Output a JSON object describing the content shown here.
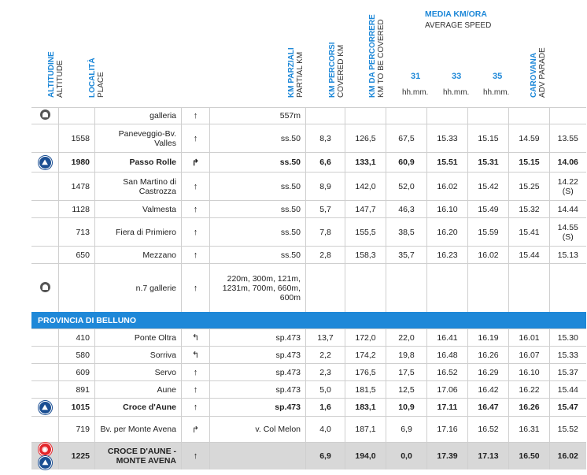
{
  "header": {
    "altitude": {
      "it": "ALTITUDINE",
      "en": "ALTITUDE"
    },
    "place": {
      "it": "LOCALITÀ",
      "en": "PLACE"
    },
    "partial_km": {
      "it": "KM PARZIALI",
      "en": "PARTIAL KM"
    },
    "covered_km": {
      "it": "KM PERCORSI",
      "en": "COVERED KM"
    },
    "to_cover_km": {
      "it": "KM DA PERCORRERE",
      "en": "KM TO BE COVERED"
    },
    "speed_title": "MEDIA KM/ORA",
    "speed_sub": "AVERAGE SPEED",
    "speeds": [
      "31",
      "33",
      "35"
    ],
    "time_unit": "hh.mm.",
    "caravan": {
      "it": "CAROVANA",
      "en": "ADV PARADE"
    }
  },
  "icons": {
    "tunnel": "tunnel-icon",
    "gpm": "gpm-badge-icon",
    "feed": "feed-zone-icon",
    "straight": "↑",
    "right": "↱",
    "left": "↰"
  },
  "colors": {
    "accent": "#1e88d8",
    "badge": "#1b4f93",
    "final_row": "#d8d8d8",
    "red": "#e3262c"
  },
  "rows": [
    {
      "icon": "tunnel",
      "alt": "",
      "place": "galleria",
      "dir": "↑",
      "road": "557m",
      "partial": "",
      "covered": "",
      "remaining": "",
      "s31": "",
      "s33": "",
      "s35": "",
      "caravan": "",
      "bold": false
    },
    {
      "icon": "",
      "alt": "1558",
      "place": "Paneveggio-Bv. Valles",
      "dir": "↑",
      "road": "ss.50",
      "partial": "8,3",
      "covered": "126,5",
      "remaining": "67,5",
      "s31": "15.33",
      "s33": "15.15",
      "s35": "14.59",
      "caravan": "13.55",
      "bold": false
    },
    {
      "icon": "gpm",
      "alt": "1980",
      "place": "Passo Rolle",
      "dir": "↱",
      "road": "ss.50",
      "partial": "6,6",
      "covered": "133,1",
      "remaining": "60,9",
      "s31": "15.51",
      "s33": "15.31",
      "s35": "15.15",
      "caravan": "14.06",
      "bold": true
    },
    {
      "icon": "",
      "alt": "1478",
      "place": "San Martino di Castrozza",
      "dir": "↑",
      "road": "ss.50",
      "partial": "8,9",
      "covered": "142,0",
      "remaining": "52,0",
      "s31": "16.02",
      "s33": "15.42",
      "s35": "15.25",
      "caravan": "14.22 (S)",
      "bold": false
    },
    {
      "icon": "",
      "alt": "1128",
      "place": "Valmesta",
      "dir": "↑",
      "road": "ss.50",
      "partial": "5,7",
      "covered": "147,7",
      "remaining": "46,3",
      "s31": "16.10",
      "s33": "15.49",
      "s35": "15.32",
      "caravan": "14.44",
      "bold": false
    },
    {
      "icon": "",
      "alt": "713",
      "place": "Fiera di Primiero",
      "dir": "↑",
      "road": "ss.50",
      "partial": "7,8",
      "covered": "155,5",
      "remaining": "38,5",
      "s31": "16.20",
      "s33": "15.59",
      "s35": "15.41",
      "caravan": "14.55 (S)",
      "bold": false
    },
    {
      "icon": "",
      "alt": "650",
      "place": "Mezzano",
      "dir": "↑",
      "road": "ss.50",
      "partial": "2,8",
      "covered": "158,3",
      "remaining": "35,7",
      "s31": "16.23",
      "s33": "16.02",
      "s35": "15.44",
      "caravan": "15.13",
      "bold": false
    },
    {
      "icon": "tunnel",
      "alt": "",
      "place": "n.7 gallerie",
      "dir": "↑",
      "road": "220m, 300m, 121m, 1231m, 700m, 660m, 600m",
      "partial": "",
      "covered": "",
      "remaining": "",
      "s31": "",
      "s33": "",
      "s35": "",
      "caravan": "",
      "bold": false
    },
    {
      "section": "PROVINCIA DI BELLUNO"
    },
    {
      "icon": "",
      "alt": "410",
      "place": "Ponte Oltra",
      "dir": "↰",
      "road": "sp.473",
      "partial": "13,7",
      "covered": "172,0",
      "remaining": "22,0",
      "s31": "16.41",
      "s33": "16.19",
      "s35": "16.01",
      "caravan": "15.30",
      "bold": false
    },
    {
      "icon": "",
      "alt": "580",
      "place": "Sorriva",
      "dir": "↰",
      "road": "sp.473",
      "partial": "2,2",
      "covered": "174,2",
      "remaining": "19,8",
      "s31": "16.48",
      "s33": "16.26",
      "s35": "16.07",
      "caravan": "15.33",
      "bold": false
    },
    {
      "icon": "",
      "alt": "609",
      "place": "Servo",
      "dir": "↑",
      "road": "sp.473",
      "partial": "2,3",
      "covered": "176,5",
      "remaining": "17,5",
      "s31": "16.52",
      "s33": "16.29",
      "s35": "16.10",
      "caravan": "15.37",
      "bold": false
    },
    {
      "icon": "",
      "alt": "891",
      "place": "Aune",
      "dir": "↑",
      "road": "sp.473",
      "partial": "5,0",
      "covered": "181,5",
      "remaining": "12,5",
      "s31": "17.06",
      "s33": "16.42",
      "s35": "16.22",
      "caravan": "15.44",
      "bold": false
    },
    {
      "icon": "gpm",
      "alt": "1015",
      "place": "Croce d'Aune",
      "dir": "↑",
      "road": "sp.473",
      "partial": "1,6",
      "covered": "183,1",
      "remaining": "10,9",
      "s31": "17.11",
      "s33": "16.47",
      "s35": "16.26",
      "caravan": "15.47",
      "bold": true
    },
    {
      "icon": "",
      "alt": "719",
      "place": "Bv. per Monte Avena",
      "dir": "↱",
      "road": "v. Col Melon",
      "partial": "4,0",
      "covered": "187,1",
      "remaining": "6,9",
      "s31": "17.16",
      "s33": "16.52",
      "s35": "16.31",
      "caravan": "15.52",
      "bold": false
    },
    {
      "icon": "finish",
      "alt": "1225",
      "place": "CROCE D'AUNE - MONTE AVENA",
      "dir": "↑",
      "road": "",
      "partial": "6,9",
      "covered": "194,0",
      "remaining": "0,0",
      "s31": "17.39",
      "s33": "17.13",
      "s35": "16.50",
      "caravan": "16.02",
      "bold": true,
      "final": true
    }
  ]
}
